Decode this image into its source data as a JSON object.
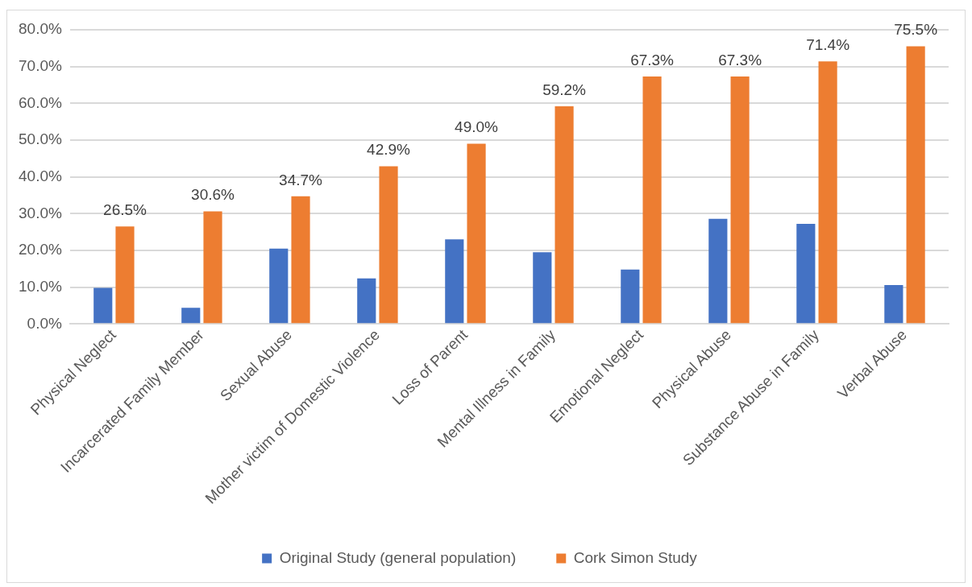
{
  "chart_data": {
    "type": "bar",
    "categories": [
      "Physical Neglect",
      "Incarcerated Family Member",
      "Sexual Abuse",
      "Mother victim of Domestic Violence",
      "Loss of Parent",
      "Mental Illness in Family",
      "Emotional Neglect",
      "Physical Abuse",
      "Substance Abuse in Family",
      "Verbal Abuse"
    ],
    "series": [
      {
        "name": "Original Study (general population)",
        "color": "#4472c4",
        "values": [
          9.8,
          4.4,
          20.5,
          12.4,
          23.0,
          19.5,
          14.8,
          28.6,
          27.2,
          10.6
        ]
      },
      {
        "name": "Cork Simon Study",
        "color": "#ed7d31",
        "values": [
          26.5,
          30.6,
          34.7,
          42.9,
          49.0,
          59.2,
          67.3,
          67.3,
          71.4,
          75.5
        ],
        "value_labels": [
          "26.5%",
          "30.6%",
          "34.7%",
          "42.9%",
          "49.0%",
          "59.2%",
          "67.3%",
          "67.3%",
          "71.4%",
          "75.5%"
        ]
      }
    ],
    "ylim": [
      0,
      80
    ],
    "yticks": [
      {
        "value": 0,
        "label": "0.0%"
      },
      {
        "value": 10,
        "label": "10.0%"
      },
      {
        "value": 20,
        "label": "20.0%"
      },
      {
        "value": 30,
        "label": "30.0%"
      },
      {
        "value": 40,
        "label": "40.0%"
      },
      {
        "value": 50,
        "label": "50.0%"
      },
      {
        "value": 60,
        "label": "60.0%"
      },
      {
        "value": 70,
        "label": "70.0%"
      },
      {
        "value": 80,
        "label": "80.0%"
      }
    ],
    "grid": "y",
    "legend": "bottom"
  }
}
